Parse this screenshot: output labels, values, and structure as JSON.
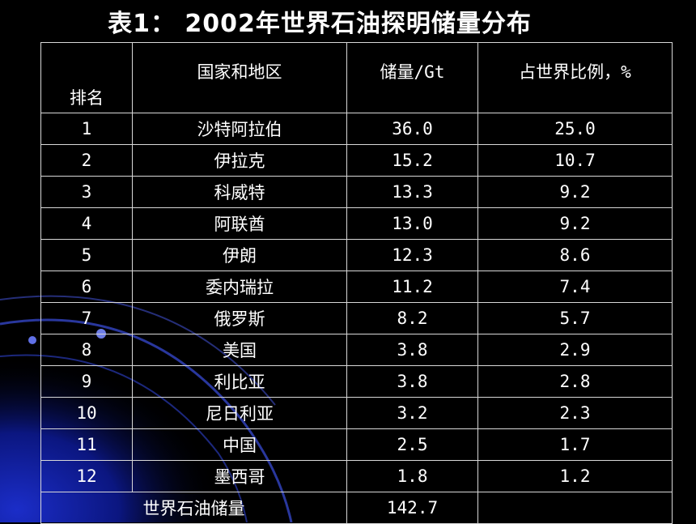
{
  "title": "表1： 2002年世界石油探明储量分布",
  "table": {
    "headers": [
      "排名",
      "国家和地区",
      "储量/Gt",
      "占世界比例，%"
    ],
    "rows": [
      [
        "1",
        "沙特阿拉伯",
        "36.0",
        "25.0"
      ],
      [
        "2",
        "伊拉克",
        "15.2",
        "10.7"
      ],
      [
        "3",
        "科威特",
        "13.3",
        "9.2"
      ],
      [
        "4",
        "阿联酋",
        "13.0",
        "9.2"
      ],
      [
        "5",
        "伊朗",
        "12.3",
        "8.6"
      ],
      [
        "6",
        "委内瑞拉",
        "11.2",
        "7.4"
      ],
      [
        "7",
        "俄罗斯",
        "8.2",
        "5.7"
      ],
      [
        "8",
        "美国",
        "3.8",
        "2.9"
      ],
      [
        "9",
        "利比亚",
        "3.8",
        "2.8"
      ],
      [
        "10",
        "尼日利亚",
        "3.2",
        "2.3"
      ],
      [
        "11",
        "中国",
        "2.5",
        "1.7"
      ],
      [
        "12",
        "墨西哥",
        "1.8",
        "1.2"
      ]
    ],
    "total": {
      "label": "世界石油储量",
      "value": "142.7",
      "share": ""
    }
  }
}
